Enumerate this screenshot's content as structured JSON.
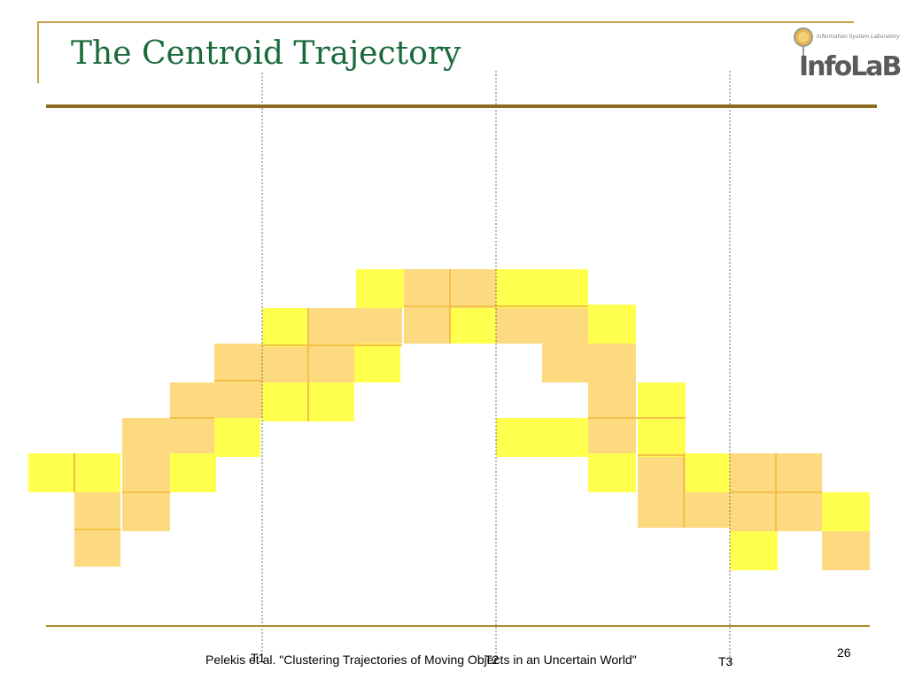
{
  "slide": {
    "title": "The Centroid Trajectory",
    "citation": "Pelekis et al. \"Clustering Trajectories of Moving Objects in an Uncertain World\"",
    "page_number": "26"
  },
  "logo": {
    "text": "InfoLaB",
    "subtitle": "Information System Laboratory"
  },
  "timestamps": [
    "T1",
    "T2",
    "T3"
  ],
  "colors": {
    "title": "#1a6b3c",
    "yellow_cell": "#ffff4d",
    "orange_cell": "#fdd97f",
    "rule": "#8b6b1f"
  }
}
